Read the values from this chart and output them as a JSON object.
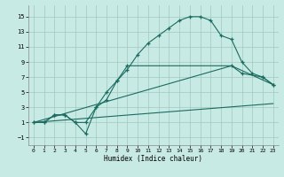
{
  "xlabel": "Humidex (Indice chaleur)",
  "xlim": [
    -0.5,
    23.5
  ],
  "ylim": [
    -2,
    16.5
  ],
  "xticks": [
    0,
    1,
    2,
    3,
    4,
    5,
    6,
    7,
    8,
    9,
    10,
    11,
    12,
    13,
    14,
    15,
    16,
    17,
    18,
    19,
    20,
    21,
    22,
    23
  ],
  "yticks": [
    -1,
    1,
    3,
    5,
    7,
    9,
    11,
    13,
    15
  ],
  "bg_color": "#c8eae4",
  "grid_color": "#a0c8c0",
  "line_color": "#1a6b60",
  "line1_x": [
    0,
    1,
    2,
    3,
    4,
    5,
    6,
    7,
    8,
    9,
    10,
    11,
    12,
    13,
    14,
    15,
    16,
    17,
    18,
    19,
    20,
    21,
    22,
    23
  ],
  "line1_y": [
    1,
    1,
    2,
    2,
    1,
    1,
    3,
    5,
    6.5,
    8,
    10,
    11.5,
    12.5,
    13.5,
    14.5,
    15,
    15,
    14.5,
    12.5,
    12,
    9,
    7.5,
    7,
    6
  ],
  "line2_x": [
    0,
    1,
    2,
    3,
    4,
    5,
    6,
    7,
    8,
    9,
    19,
    20,
    22,
    23
  ],
  "line2_y": [
    1,
    1,
    2,
    2,
    1,
    -0.5,
    3,
    4,
    6.5,
    8.5,
    8.5,
    7.5,
    7,
    6
  ],
  "line3_x": [
    0,
    23
  ],
  "line3_y": [
    1,
    3.5
  ],
  "line4_x": [
    0,
    19,
    23
  ],
  "line4_y": [
    1,
    8.5,
    6
  ]
}
